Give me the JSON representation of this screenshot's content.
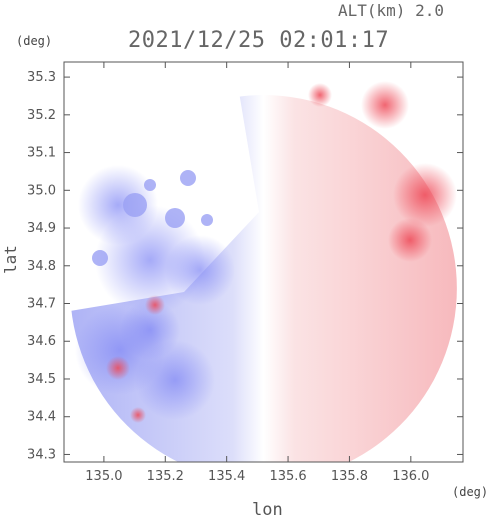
{
  "header": {
    "altitude": "ALT(km) 2.0",
    "timestamp": "2021/12/25 02:01:17",
    "lat_unit": "(deg)",
    "lon_unit": "(deg)"
  },
  "chart_data": {
    "type": "heatmap",
    "title": "2021/12/25 02:01:17",
    "subtitle": "ALT(km) 2.0",
    "xlabel": "lon",
    "ylabel": "lat",
    "xlim": [
      134.87,
      136.17
    ],
    "ylim": [
      34.28,
      35.34
    ],
    "x_ticks": [
      135.0,
      135.2,
      135.4,
      135.6,
      135.8,
      136.0
    ],
    "x_tick_labels": [
      "135.0",
      "135.2",
      "135.4",
      "135.6",
      "135.8",
      "136.0"
    ],
    "y_ticks": [
      34.3,
      34.4,
      34.5,
      34.6,
      34.7,
      34.8,
      34.9,
      35.0,
      35.1,
      35.2,
      35.3
    ],
    "y_tick_labels": [
      "34.3",
      "34.4",
      "34.5",
      "34.6",
      "34.7",
      "34.8",
      "34.9",
      "35.0",
      "35.1",
      "35.2",
      "35.3"
    ],
    "field": {
      "kind": "doppler radial velocity (diverging blue-white-red)",
      "radar_center": [
        135.52,
        34.74
      ],
      "radius_deg": 0.63,
      "negative_color": "#7f86f5",
      "zero_color": "#ffffff",
      "positive_color": "#f59aa0",
      "strong_positive_color": "#ee4a58"
    },
    "grid": false,
    "legend": "none"
  }
}
